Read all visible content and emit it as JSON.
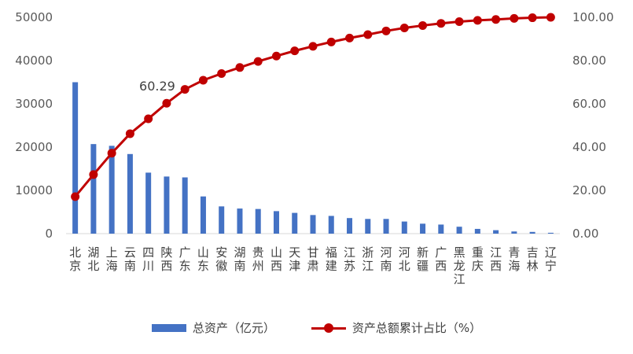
{
  "chart_data": {
    "type": "bar",
    "categories": [
      "北京",
      "湖北",
      "上海",
      "云南",
      "四川",
      "陕西",
      "广东",
      "山东",
      "安徽",
      "湖南",
      "贵州",
      "山西",
      "天津",
      "甘肃",
      "福建",
      "江苏",
      "浙江",
      "河南",
      "河北",
      "新疆",
      "广西",
      "黑龙江",
      "重庆",
      "江西",
      "青海",
      "吉林",
      "辽宁"
    ],
    "series": [
      {
        "name": "总资产（亿元）",
        "type": "bar",
        "axis": "left",
        "color": "#4472C4",
        "values": [
          35000,
          20700,
          20300,
          18400,
          14100,
          13200,
          13000,
          8600,
          6300,
          5800,
          5700,
          5200,
          4800,
          4300,
          4100,
          3600,
          3400,
          3400,
          2800,
          2300,
          2100,
          1600,
          1100,
          800,
          500,
          400,
          200
        ]
      },
      {
        "name": "资产总额累计占比（%）",
        "type": "line",
        "axis": "right",
        "color": "#C00000",
        "values": [
          17.1,
          27.3,
          37.2,
          46.2,
          53.1,
          60.29,
          66.7,
          70.9,
          74.0,
          76.8,
          79.6,
          82.1,
          84.5,
          86.6,
          88.6,
          90.4,
          92.0,
          93.7,
          95.1,
          96.2,
          97.2,
          98.0,
          98.6,
          99.0,
          99.5,
          99.8,
          100.0
        ]
      }
    ],
    "y_left": {
      "min": 0,
      "max": 50000,
      "ticks": [
        "0",
        "10000",
        "20000",
        "30000",
        "40000",
        "50000"
      ]
    },
    "y_right": {
      "min": 0,
      "max": 100,
      "ticks": [
        "0.00",
        "20.00",
        "40.00",
        "60.00",
        "80.00",
        "100.00"
      ]
    },
    "data_labels": [
      {
        "series": 1,
        "index": 5,
        "text": "60.29"
      }
    ],
    "legend_position": "bottom",
    "grid": false
  }
}
